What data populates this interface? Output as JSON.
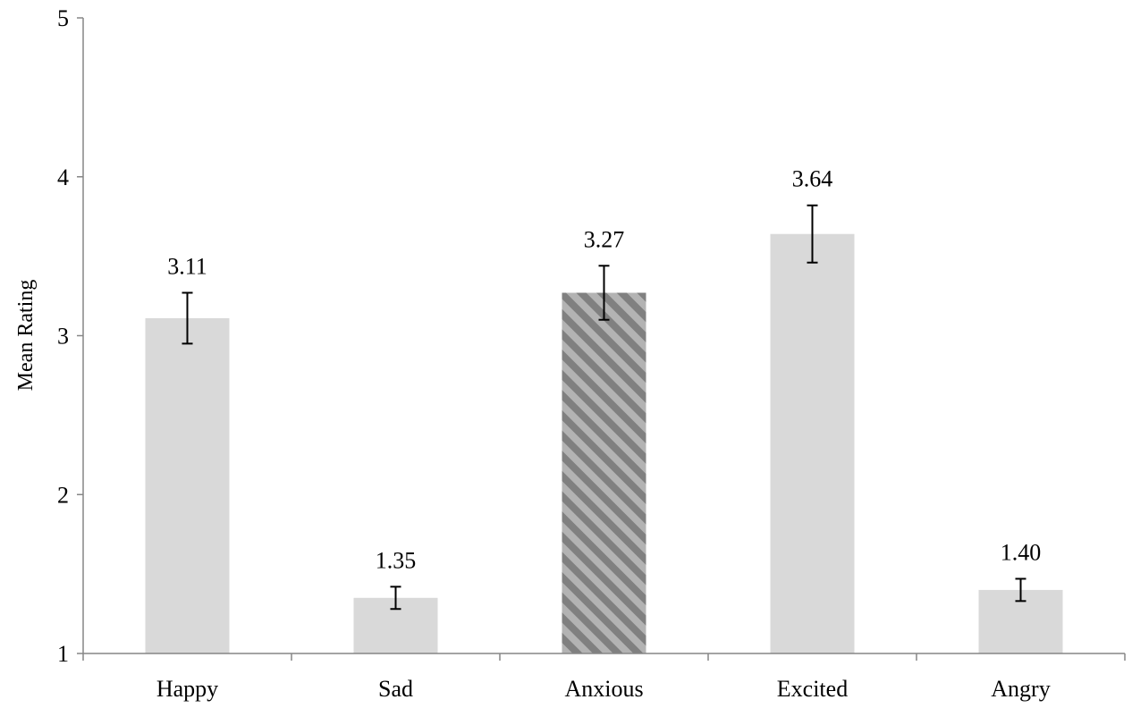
{
  "chart_data": {
    "type": "bar",
    "title": "",
    "xlabel": "",
    "ylabel": "Mean Rating",
    "ylim": [
      1,
      5
    ],
    "yticks": [
      1,
      2,
      3,
      4,
      5
    ],
    "categories": [
      "Happy",
      "Sad",
      "Anxious",
      "Excited",
      "Angry"
    ],
    "values": [
      3.11,
      1.35,
      3.27,
      3.64,
      1.4
    ],
    "value_labels": [
      "3.11",
      "1.35",
      "3.27",
      "3.64",
      "1.40"
    ],
    "error": [
      0.16,
      0.07,
      0.17,
      0.18,
      0.07
    ],
    "bar_styles": [
      "solid",
      "solid",
      "hatched",
      "solid",
      "solid"
    ],
    "colors": {
      "bar": "#d9d9d9",
      "hatch_dark": "#808080",
      "hatch_light": "#b3b3b3",
      "axis": "#868686",
      "errorbar": "#000000"
    },
    "grid": false,
    "legend": "none"
  }
}
